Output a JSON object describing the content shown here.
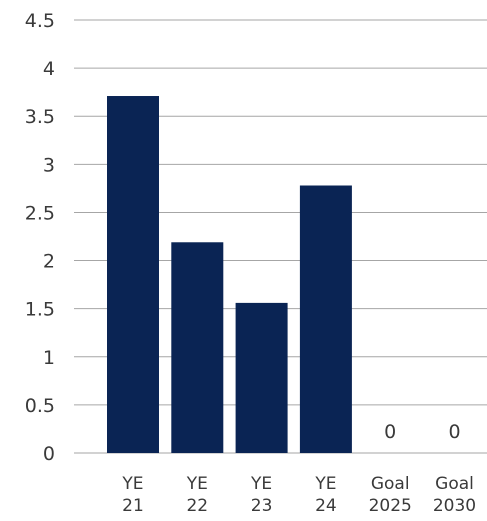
{
  "chart_data": {
    "type": "bar",
    "categories": [
      [
        "YE",
        "21"
      ],
      [
        "YE",
        "22"
      ],
      [
        "YE",
        "23"
      ],
      [
        "YE",
        "24"
      ],
      [
        "Goal",
        "2025"
      ],
      [
        "Goal",
        "2030"
      ]
    ],
    "values": [
      3.71,
      2.19,
      1.56,
      2.78,
      0,
      0
    ],
    "data_labels": [
      "",
      "",
      "",
      "",
      "0",
      "0"
    ],
    "title": "",
    "xlabel": "",
    "ylabel": "",
    "ylim": [
      0,
      4.5
    ],
    "yticks": [
      0,
      0.5,
      1,
      1.5,
      2,
      2.5,
      3,
      3.5,
      4,
      4.5
    ],
    "ytick_labels": [
      "0",
      "0.5",
      "1",
      "1.5",
      "2",
      "2.5",
      "3",
      "3.5",
      "4",
      "4.5"
    ],
    "grid": true,
    "legend": "none",
    "colors": {
      "bar": "#0a2454",
      "grid": "#a6a6a6",
      "text": "#3a3a3a"
    }
  }
}
